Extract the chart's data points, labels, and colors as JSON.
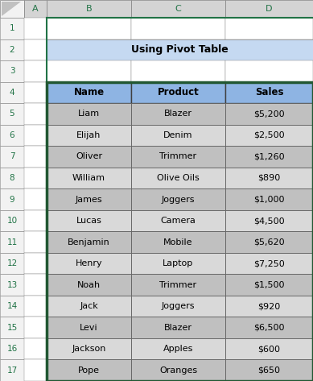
{
  "title": "Using Pivot Table",
  "title_bg": "#C5D9F1",
  "header": [
    "Name",
    "Product",
    "Sales"
  ],
  "header_bg": "#8EB4E3",
  "rows": [
    [
      "Liam",
      "Blazer",
      "$5,200"
    ],
    [
      "Elijah",
      "Denim",
      "$2,500"
    ],
    [
      "Oliver",
      "Trimmer",
      "$1,260"
    ],
    [
      "William",
      "Olive Oils",
      "$890"
    ],
    [
      "James",
      "Joggers",
      "$1,000"
    ],
    [
      "Lucas",
      "Camera",
      "$4,500"
    ],
    [
      "Benjamin",
      "Mobile",
      "$5,620"
    ],
    [
      "Henry",
      "Laptop",
      "$7,250"
    ],
    [
      "Noah",
      "Trimmer",
      "$1,500"
    ],
    [
      "Jack",
      "Joggers",
      "$920"
    ],
    [
      "Levi",
      "Blazer",
      "$6,500"
    ],
    [
      "Jackson",
      "Apples",
      "$600"
    ],
    [
      "Pope",
      "Oranges",
      "$650"
    ]
  ],
  "row_bg_odd": "#C0C0C0",
  "row_bg_even": "#D9D9D9",
  "col_header_bg": "#D4D4D4",
  "col_header_fg": "#217346",
  "row_header_bg": "#F2F2F2",
  "row_header_fg": "#217346",
  "grid_line_color": "#808080",
  "table_border_color": "#215732",
  "title_border_color": "#217346",
  "spreadsheet_bg": "#FFFFFF",
  "col_labels": [
    "A",
    "B",
    "C",
    "D"
  ],
  "row_labels": [
    "1",
    "2",
    "3",
    "4",
    "5",
    "6",
    "7",
    "8",
    "9",
    "10",
    "11",
    "12",
    "13",
    "14",
    "15",
    "16",
    "17"
  ],
  "fig_bg": "#FFFFFF",
  "col_sep_color": "#217346",
  "corner_bg": "#F2F2F2"
}
